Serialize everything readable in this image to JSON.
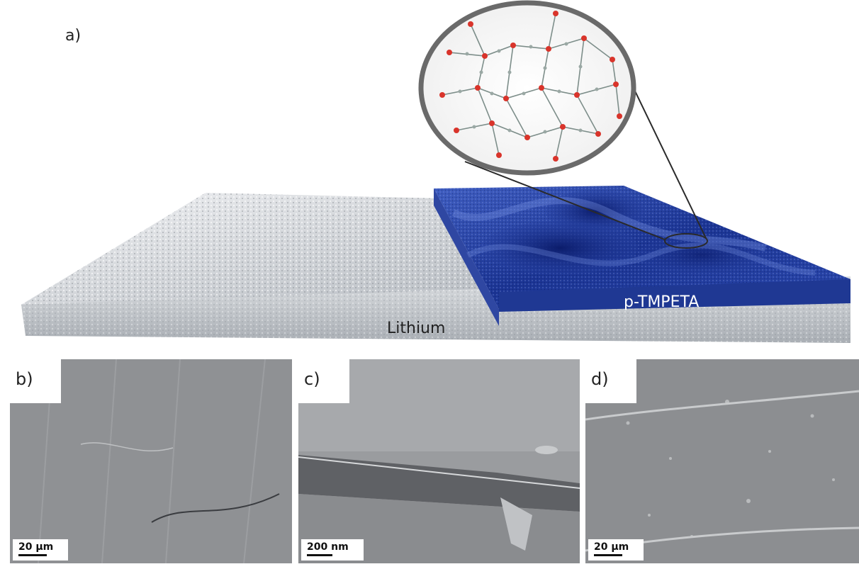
{
  "panels": {
    "a": {
      "label": "a)",
      "layer_top": "p-TMPETA",
      "layer_bottom": "Lithium"
    },
    "b": {
      "label": "b)",
      "scale": "20 µm"
    },
    "c": {
      "label": "c)",
      "scale": "200 nm"
    },
    "d": {
      "label": "d)",
      "scale": "20 µm"
    }
  },
  "colors": {
    "lithium": "#c9ccd0",
    "polymer": "#1d3a9a",
    "oxygen": "#d9342b",
    "carbon": "#8a9a96"
  }
}
